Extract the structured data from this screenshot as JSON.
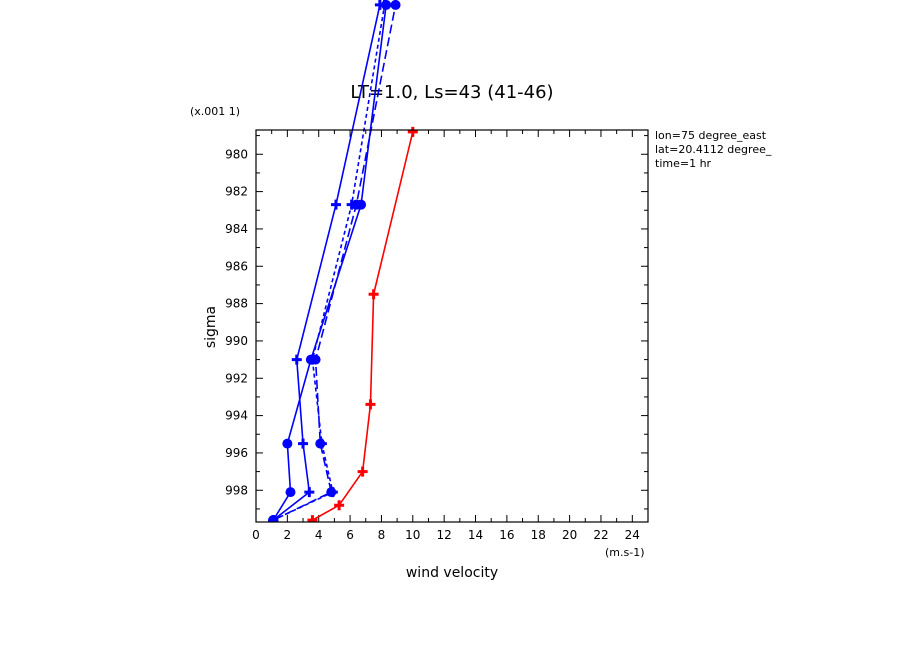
{
  "chart_data": {
    "type": "line",
    "title": "LT=1.0, Ls=43 (41-46)",
    "xlabel": "wind velocity",
    "ylabel": "sigma",
    "x_units": "(m.s-1)",
    "y_scale_label": "(x.001 1)",
    "annotations": [
      "lon=75 degree_east",
      "lat=20.4112 degree_",
      "time=1 hr"
    ],
    "xlim": [
      0,
      25
    ],
    "ylim": [
      999.7,
      978.7
    ],
    "x_ticks": [
      0,
      2,
      4,
      6,
      8,
      10,
      12,
      14,
      16,
      18,
      20,
      22,
      24
    ],
    "y_ticks": [
      980,
      982,
      984,
      986,
      988,
      990,
      992,
      994,
      996,
      998
    ],
    "y_tick_labels": [
      "980",
      "982",
      "984",
      "986",
      "988",
      "990",
      "992",
      "994",
      "996",
      "998"
    ],
    "series": [
      {
        "style": "solid",
        "color": "#0000ff",
        "marker": "plus",
        "points": [
          [
            1.1,
            999.6
          ],
          [
            3.4,
            998.1
          ],
          [
            3.0,
            995.5
          ],
          [
            2.6,
            991.0
          ],
          [
            5.1,
            982.7
          ],
          [
            7.9,
            972.0
          ]
        ]
      },
      {
        "style": "solid",
        "color": "#0000ff",
        "marker": "dot",
        "points": [
          [
            1.1,
            999.6
          ],
          [
            2.2,
            998.1
          ],
          [
            2.0,
            995.5
          ],
          [
            3.5,
            991.0
          ],
          [
            6.7,
            982.7
          ],
          [
            8.3,
            972.0
          ]
        ]
      },
      {
        "style": "dashed",
        "color": "#0000ff",
        "marker": "plus",
        "points": [
          [
            1.1,
            999.6
          ],
          [
            4.9,
            998.1
          ],
          [
            4.2,
            995.5
          ],
          [
            3.6,
            991.0
          ],
          [
            6.1,
            982.7
          ],
          [
            8.2,
            972.0
          ]
        ]
      },
      {
        "style": "dashed",
        "color": "#0000ff",
        "marker": "dot",
        "points": [
          [
            1.1,
            999.6
          ],
          [
            4.8,
            998.1
          ],
          [
            4.1,
            995.5
          ],
          [
            3.8,
            991.0
          ],
          [
            6.4,
            982.7
          ],
          [
            8.9,
            972.0
          ]
        ]
      },
      {
        "style": "solid",
        "color": "#ff0000",
        "marker": "plus",
        "points": [
          [
            3.6,
            999.6
          ],
          [
            5.3,
            998.8
          ],
          [
            6.8,
            997.0
          ],
          [
            7.3,
            993.4
          ],
          [
            7.5,
            987.5
          ],
          [
            10.0,
            978.8
          ]
        ]
      }
    ]
  }
}
